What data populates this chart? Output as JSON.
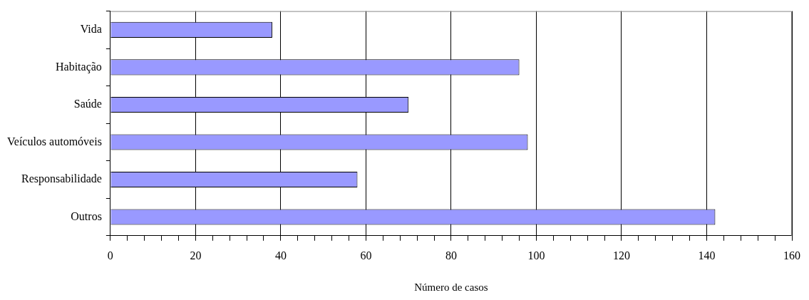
{
  "chart_data": {
    "type": "bar",
    "orientation": "horizontal",
    "xlabel": "Número de casos",
    "categories": [
      "Vida",
      "Habitação",
      "Saúde",
      "Veículos automóveis",
      "Responsabilidade",
      "Outros"
    ],
    "values": [
      38,
      96,
      70,
      98,
      58,
      142
    ],
    "color": "#9999ff",
    "xlim": [
      0,
      160
    ],
    "xticks": [
      0,
      {
        "value": 4,
        "label": null
      },
      {
        "value": 8,
        "label": null
      },
      {
        "value": 12,
        "label": null
      },
      {
        "value": 16,
        "label": null
      },
      20,
      {
        "value": 24,
        "label": null
      },
      {
        "value": 28,
        "label": null
      },
      {
        "value": 32,
        "label": null
      },
      {
        "value": 36,
        "label": null
      },
      40,
      {
        "value": 44,
        "label": null
      },
      {
        "value": 48,
        "label": null
      },
      {
        "value": 52,
        "label": null
      },
      {
        "value": 56,
        "label": null
      },
      60,
      {
        "value": 64,
        "label": null
      },
      {
        "value": 68,
        "label": null
      },
      {
        "value": 72,
        "label": null
      },
      {
        "value": 76,
        "label": null
      },
      80,
      {
        "value": 84,
        "label": null
      },
      {
        "value": 88,
        "label": null
      },
      {
        "value": 92,
        "label": null
      },
      {
        "value": 96,
        "label": null
      },
      100,
      {
        "value": 104,
        "label": null
      },
      {
        "value": 108,
        "label": null
      },
      {
        "value": 112,
        "label": null
      },
      {
        "value": 116,
        "label": null
      },
      120,
      {
        "value": 124,
        "label": null
      },
      {
        "value": 128,
        "label": null
      },
      {
        "value": 132,
        "label": null
      },
      {
        "value": 136,
        "label": null
      },
      140,
      {
        "value": 144,
        "label": null
      },
      {
        "value": 148,
        "label": null
      },
      {
        "value": 152,
        "label": null
      },
      {
        "value": 156,
        "label": null
      },
      160
    ],
    "grid": "x",
    "legend": false
  }
}
